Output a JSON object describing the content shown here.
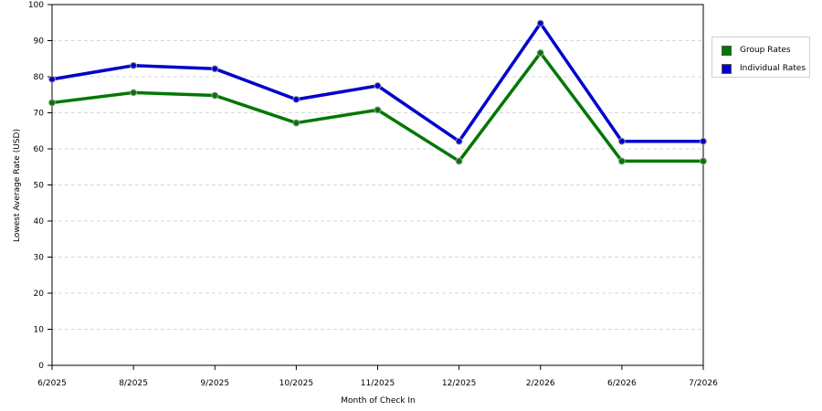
{
  "chart_data": {
    "type": "line",
    "title": "",
    "xlabel": "Month of Check In",
    "ylabel": "Lowest Average Rate (USD)",
    "categories": [
      "6/2025",
      "8/2025",
      "9/2025",
      "10/2025",
      "11/2025",
      "12/2025",
      "2/2026",
      "6/2026",
      "7/2026"
    ],
    "ylim": [
      0,
      100
    ],
    "yticks": [
      "0",
      "10",
      "20",
      "30",
      "40",
      "50",
      "60",
      "70",
      "80",
      "90",
      "100"
    ],
    "grid": "horizontal dashed",
    "legend_position": "right",
    "series": [
      {
        "name": "Group Rates",
        "color": "#007700",
        "values": [
          72.8,
          75.6,
          74.8,
          67.2,
          70.8,
          56.6,
          86.6,
          56.6,
          56.6
        ]
      },
      {
        "name": "Individual Rates",
        "color": "#0000cc",
        "values": [
          79.3,
          83.1,
          82.2,
          73.7,
          77.5,
          62.1,
          94.8,
          62.1,
          62.1
        ]
      }
    ]
  }
}
